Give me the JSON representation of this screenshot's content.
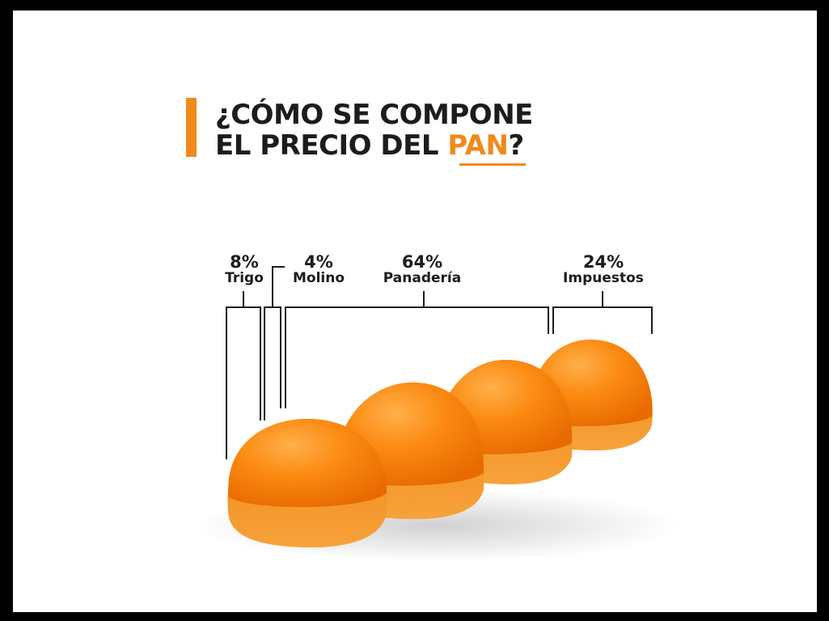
{
  "title": {
    "line1": "¿CÓMO SE COMPONE",
    "line2_prefix": "EL PRECIO DEL ",
    "line2_accent": "PAN",
    "line2_suffix": "?"
  },
  "segments": [
    {
      "percent": "8%",
      "label": "Trigo"
    },
    {
      "percent": "4%",
      "label": "Molino"
    },
    {
      "percent": "64%",
      "label": "Panadería"
    },
    {
      "percent": "24%",
      "label": "Impuestos"
    }
  ],
  "colors": {
    "accent": "#f08a1c",
    "text": "#1c1c1c",
    "background": "#ffffff",
    "frame": "#000000"
  },
  "image": {
    "subject": "four orange bread buns in a row"
  }
}
